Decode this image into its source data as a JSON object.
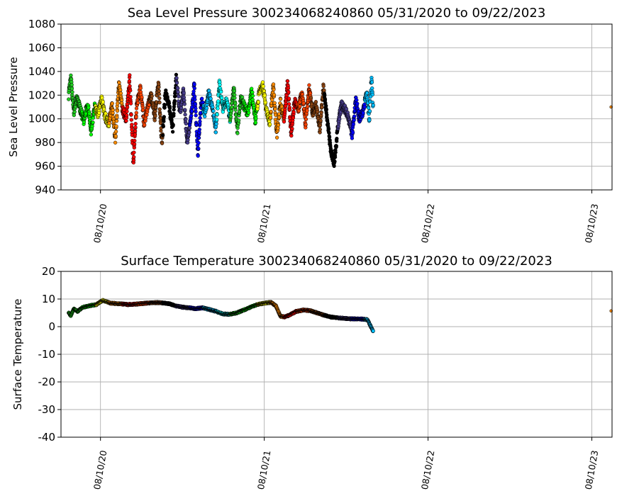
{
  "chart_data": [
    {
      "type": "scatter",
      "title": "Sea Level Pressure 300234068240860  05/31/2020 to 09/22/2023",
      "xlabel": "",
      "ylabel": "Sea Level Pressure",
      "ylim": [
        940,
        1080
      ],
      "yticks": [
        940,
        960,
        980,
        1000,
        1020,
        1040,
        1060,
        1080
      ],
      "xlim": [
        "2020-05-14",
        "2023-09-24"
      ],
      "xticks": [
        {
          "date": "2020-08-10",
          "label": "08/10/20"
        },
        {
          "date": "2021-08-10",
          "label": "08/10/21"
        },
        {
          "date": "2022-08-10",
          "label": "08/10/22"
        },
        {
          "date": "2023-08-10",
          "label": "08/10/23"
        }
      ],
      "grid": true,
      "color_cycle_days": 30,
      "series": [
        {
          "marker": "filled circle, black edge, colour changes every month",
          "x": [
            "2020-05-31",
            "2020-06-05",
            "2020-06-12",
            "2020-06-18",
            "2020-06-26",
            "2020-07-04",
            "2020-07-12",
            "2020-07-20",
            "2020-07-28",
            "2020-08-05",
            "2020-08-12",
            "2020-08-20",
            "2020-08-28",
            "2020-09-05",
            "2020-09-12",
            "2020-09-20",
            "2020-09-28",
            "2020-10-06",
            "2020-10-14",
            "2020-10-22",
            "2020-10-30",
            "2020-11-07",
            "2020-11-15",
            "2020-11-23",
            "2020-12-01",
            "2020-12-09",
            "2020-12-17",
            "2020-12-25",
            "2021-01-02",
            "2021-01-10",
            "2021-01-18",
            "2021-01-26",
            "2021-02-03",
            "2021-02-11",
            "2021-02-19",
            "2021-02-27",
            "2021-03-07",
            "2021-03-15",
            "2021-03-23",
            "2021-03-31",
            "2021-04-08",
            "2021-04-16",
            "2021-04-24",
            "2021-05-02",
            "2021-05-10",
            "2021-05-18",
            "2021-05-26",
            "2021-06-03",
            "2021-06-11",
            "2021-06-19",
            "2021-06-27",
            "2021-07-05",
            "2021-07-13",
            "2021-07-21",
            "2021-07-29",
            "2021-08-06",
            "2021-08-14",
            "2021-08-22",
            "2021-08-30",
            "2021-09-07",
            "2021-09-15",
            "2021-09-23",
            "2021-10-01",
            "2021-10-09",
            "2021-10-17",
            "2021-10-25",
            "2021-11-02",
            "2021-11-10",
            "2021-11-18",
            "2021-11-26",
            "2021-12-04",
            "2021-12-12",
            "2021-12-20",
            "2021-12-28",
            "2022-01-05",
            "2022-01-13",
            "2022-01-21",
            "2022-01-29",
            "2022-02-06",
            "2022-02-14",
            "2022-02-22",
            "2022-03-02",
            "2022-03-10",
            "2022-03-18",
            "2022-03-26",
            "2022-04-01",
            "2022-04-06",
            "2022-04-10",
            "2023-09-22"
          ],
          "y": [
            1020,
            1034,
            1005,
            1018,
            1008,
            998,
            1014,
            990,
            1010,
            1004,
            1018,
            1002,
            996,
            1012,
            982,
            1030,
            1008,
            1000,
            1034,
            962,
            1012,
            1026,
            996,
            1010,
            1020,
            1002,
            1030,
            978,
            1024,
            1010,
            992,
            1036,
            1004,
            1024,
            980,
            1000,
            1028,
            970,
            1016,
            1004,
            1022,
            1010,
            990,
            1030,
            1008,
            1016,
            1000,
            1026,
            990,
            1018,
            1010,
            1004,
            1024,
            998,
            1020,
            1030,
            1008,
            996,
            1028,
            986,
            1014,
            1000,
            1030,
            988,
            1016,
            1008,
            1022,
            996,
            1026,
            1004,
            1012,
            990,
            1028,
            1000,
            974,
            962,
            994,
            1012,
            1008,
            1000,
            986,
            1016,
            1000,
            1006,
            1022,
            1000,
            1036,
            1006,
            1010
          ]
        }
      ]
    },
    {
      "type": "scatter",
      "title": "Surface Temperature 300234068240860  05/31/2020 to 09/22/2023",
      "xlabel": "",
      "ylabel": "Surface Temperature",
      "ylim": [
        -40,
        20
      ],
      "yticks": [
        -40,
        -30,
        -20,
        -10,
        0,
        10,
        20
      ],
      "xlim": [
        "2020-05-14",
        "2023-09-24"
      ],
      "xticks": [
        {
          "date": "2020-08-10",
          "label": "08/10/20"
        },
        {
          "date": "2021-08-10",
          "label": "08/10/21"
        },
        {
          "date": "2022-08-10",
          "label": "08/10/22"
        },
        {
          "date": "2023-08-10",
          "label": "08/10/23"
        }
      ],
      "grid": true,
      "color_cycle_days": 30,
      "series": [
        {
          "marker": "filled circle, black edge, colour changes every month",
          "x": [
            "2020-05-31",
            "2020-06-05",
            "2020-06-12",
            "2020-06-20",
            "2020-07-01",
            "2020-07-15",
            "2020-08-01",
            "2020-08-15",
            "2020-09-01",
            "2020-09-20",
            "2020-10-10",
            "2020-11-01",
            "2020-11-20",
            "2020-12-10",
            "2020-12-25",
            "2021-01-10",
            "2021-01-25",
            "2021-02-10",
            "2021-02-25",
            "2021-03-10",
            "2021-03-25",
            "2021-04-10",
            "2021-04-25",
            "2021-05-10",
            "2021-05-25",
            "2021-06-10",
            "2021-06-25",
            "2021-07-10",
            "2021-07-25",
            "2021-08-10",
            "2021-08-25",
            "2021-09-05",
            "2021-09-15",
            "2021-09-25",
            "2021-10-05",
            "2021-10-20",
            "2021-11-05",
            "2021-11-20",
            "2021-12-05",
            "2021-12-20",
            "2022-01-05",
            "2022-01-20",
            "2022-02-05",
            "2022-02-20",
            "2022-03-05",
            "2022-03-20",
            "2022-03-28",
            "2022-04-03",
            "2022-04-08",
            "2022-04-10",
            "2023-09-22"
          ],
          "y": [
            5,
            4,
            6.5,
            5.5,
            7,
            7.5,
            8,
            9.5,
            8.5,
            8.3,
            8,
            8.2,
            8.5,
            8.7,
            8.6,
            8.3,
            7.5,
            7,
            6.8,
            6.5,
            6.8,
            6.2,
            5.5,
            4.6,
            4.5,
            5,
            6,
            7,
            8,
            8.5,
            8.8,
            7.5,
            3.8,
            3.5,
            4.2,
            5.5,
            6,
            5.8,
            5,
            4.2,
            3.5,
            3.2,
            3,
            2.8,
            2.8,
            2.7,
            2.5,
            0.5,
            -1.2,
            -1.8,
            5.7
          ]
        }
      ]
    }
  ]
}
